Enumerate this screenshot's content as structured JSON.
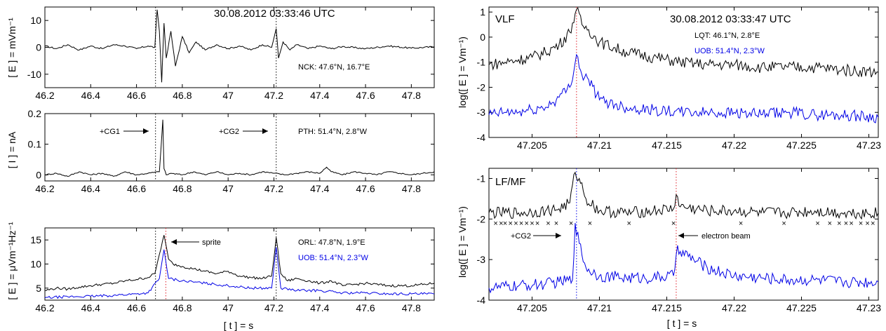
{
  "colors": {
    "black": "#000000",
    "blue": "#0000e6",
    "red": "#e0202a",
    "axis": "#000000"
  },
  "xlabel": "[ t ] = s",
  "chart_data": [
    {
      "id": "e_nck",
      "type": "line",
      "title": "30.08.2012   03:33:46 UTC",
      "ylabel": "[ E ] = mVm⁻¹",
      "xlim": [
        46.2,
        47.9
      ],
      "ylim": [
        -15,
        15
      ],
      "xticks": [
        "46.2",
        "46.4",
        "46.6",
        "46.8",
        "47",
        "47.2",
        "47.4",
        "47.6",
        "47.8"
      ],
      "yticks": [
        "-10",
        "0",
        "10"
      ],
      "annotations": [
        {
          "text": "NCK: 47.6°N, 16.7°E",
          "color": "black"
        }
      ],
      "vlines": [
        {
          "x": 46.683,
          "color": "black"
        },
        {
          "x": 47.21,
          "color": "black"
        }
      ],
      "series": [
        {
          "color": "black",
          "x": [
            46.2,
            46.25,
            46.3,
            46.35,
            46.4,
            46.45,
            46.5,
            46.55,
            46.6,
            46.65,
            46.68,
            46.69,
            46.7,
            46.71,
            46.72,
            46.73,
            46.75,
            46.77,
            46.8,
            46.83,
            46.86,
            46.9,
            46.95,
            47.0,
            47.05,
            47.1,
            47.15,
            47.19,
            47.21,
            47.22,
            47.24,
            47.27,
            47.3,
            47.35,
            47.4,
            47.45,
            47.5,
            47.6,
            47.7,
            47.8,
            47.9
          ],
          "y": [
            0.5,
            -0.5,
            1,
            -1,
            0.5,
            -0.5,
            1,
            0.5,
            -0.5,
            0.5,
            0,
            14,
            6,
            -13,
            9,
            -4,
            6,
            -7,
            4,
            -2,
            2,
            -1,
            1,
            -0.5,
            0.5,
            -1,
            1,
            0,
            7,
            -4,
            2,
            -1,
            1,
            -0.5,
            0.5,
            -0.5,
            0.3,
            -0.5,
            0.5,
            -0.3,
            0.2
          ]
        }
      ]
    },
    {
      "id": "i_pth",
      "type": "line",
      "ylabel": "[ I ] = nA",
      "xlim": [
        46.2,
        47.9
      ],
      "ylim": [
        -0.02,
        0.2
      ],
      "xticks": [
        "46.2",
        "46.4",
        "46.6",
        "46.8",
        "47",
        "47.2",
        "47.4",
        "47.6",
        "47.8"
      ],
      "yticks": [
        "0",
        "0.1",
        "0.2"
      ],
      "annotations": [
        {
          "text": "+CG1",
          "x": 46.683
        },
        {
          "text": "+CG2",
          "x": 47.21
        },
        {
          "text": "PTH: 51.4°N, 2.8°W",
          "color": "black"
        }
      ],
      "vlines": [
        {
          "x": 46.683,
          "color": "black"
        },
        {
          "x": 47.21,
          "color": "black"
        }
      ],
      "series": [
        {
          "color": "black",
          "x": [
            46.2,
            46.25,
            46.3,
            46.35,
            46.4,
            46.45,
            46.5,
            46.55,
            46.6,
            46.65,
            46.7,
            46.715,
            46.72,
            46.73,
            46.75,
            46.8,
            46.85,
            46.9,
            46.95,
            47.0,
            47.05,
            47.1,
            47.15,
            47.2,
            47.25,
            47.3,
            47.35,
            47.4,
            47.43,
            47.45,
            47.5,
            47.55,
            47.6,
            47.65,
            47.7,
            47.75,
            47.8,
            47.85,
            47.9
          ],
          "y": [
            0,
            0.005,
            -0.005,
            0.01,
            0,
            0.005,
            -0.005,
            0.01,
            0,
            0.005,
            0.01,
            0.18,
            0.02,
            0,
            0.005,
            0,
            0.01,
            0,
            0.01,
            0,
            0.005,
            0,
            0.01,
            0.005,
            0,
            0.005,
            0.01,
            0.005,
            0.025,
            0.01,
            0,
            0.01,
            0.005,
            0,
            0.01,
            0.005,
            0,
            0.005,
            0.01
          ]
        }
      ]
    },
    {
      "id": "e_orl",
      "type": "line",
      "ylabel": "[ E ] = μVm⁻¹Hz⁻¹",
      "xlim": [
        46.2,
        47.9
      ],
      "ylim": [
        2.5,
        17.5
      ],
      "xticks": [
        "46.2",
        "46.4",
        "46.6",
        "46.8",
        "47",
        "47.2",
        "47.4",
        "47.6",
        "47.8"
      ],
      "yticks": [
        "5",
        "10",
        "15"
      ],
      "annotations": [
        {
          "text": "sprite"
        },
        {
          "text": "ORL: 47.8°N, 1.9°E",
          "color": "black"
        },
        {
          "text": "UOB: 51.4°N, 2.3°W",
          "color": "blue"
        }
      ],
      "vlines": [
        {
          "x": 46.683,
          "color": "black"
        },
        {
          "x": 47.21,
          "color": "black"
        },
        {
          "x": 46.728,
          "color": "red"
        }
      ],
      "series": [
        {
          "color": "black",
          "x": [
            46.2,
            46.25,
            46.3,
            46.35,
            46.4,
            46.45,
            46.5,
            46.55,
            46.6,
            46.65,
            46.68,
            46.7,
            46.72,
            46.74,
            46.76,
            46.8,
            46.85,
            46.9,
            46.95,
            47.0,
            47.05,
            47.1,
            47.15,
            47.19,
            47.21,
            47.23,
            47.26,
            47.3,
            47.35,
            47.4,
            47.45,
            47.5,
            47.6,
            47.7,
            47.8,
            47.9
          ],
          "y": [
            4.5,
            5,
            4.8,
            5.2,
            5.5,
            5.8,
            6,
            6.5,
            6.8,
            7.2,
            8,
            12,
            16,
            11,
            10,
            9.5,
            9,
            8.5,
            8,
            8.5,
            7.5,
            7.2,
            7,
            7.5,
            15.5,
            8,
            6.5,
            7,
            6.5,
            6,
            6.5,
            5.5,
            6,
            5.5,
            5.5,
            6
          ]
        },
        {
          "color": "blue",
          "x": [
            46.2,
            46.3,
            46.4,
            46.5,
            46.6,
            46.65,
            46.7,
            46.72,
            46.74,
            46.8,
            46.9,
            47.0,
            47.1,
            47.19,
            47.21,
            47.23,
            47.3,
            47.4,
            47.5,
            47.6,
            47.7,
            47.8,
            47.9
          ],
          "y": [
            3,
            3.2,
            3.3,
            3.5,
            3.8,
            4,
            7,
            13,
            7,
            6.5,
            6,
            5.5,
            5,
            5,
            13.5,
            5,
            4.5,
            4.5,
            4,
            4,
            3.8,
            3.8,
            3.8
          ]
        }
      ]
    },
    {
      "id": "vlf",
      "type": "line",
      "panel_label": "VLF",
      "title": "30.08.2012   03:33:47 UTC",
      "ylabel": "log([ E ] = Vm⁻¹)",
      "xlim": [
        47.2018,
        47.2307
      ],
      "ylim": [
        -4,
        1.2
      ],
      "xticks": [
        "47.205",
        "47.21",
        "47.215",
        "47.22",
        "47.225",
        "47.23"
      ],
      "yticks": [
        "-4",
        "-3",
        "-2",
        "-1",
        "0",
        "1"
      ],
      "annotations": [
        {
          "text": "LQT: 46.1°N, 2.8°E",
          "color": "black"
        },
        {
          "text": "UOB: 51.4°N, 2.3°W",
          "color": "blue"
        }
      ],
      "vlines": [
        {
          "x": 47.2083,
          "color": "red"
        }
      ],
      "series": [
        {
          "color": "black",
          "x": [
            47.2018,
            47.203,
            47.204,
            47.205,
            47.206,
            47.207,
            47.2078,
            47.2083,
            47.2087,
            47.2092,
            47.21,
            47.212,
            47.214,
            47.216,
            47.218,
            47.22,
            47.222,
            47.224,
            47.226,
            47.228,
            47.2307
          ],
          "y": [
            -1.1,
            -1.0,
            -0.9,
            -0.8,
            -0.6,
            -0.3,
            0.2,
            1.1,
            0.5,
            0.3,
            -0.2,
            -0.6,
            -0.8,
            -1.0,
            -1.1,
            -1.1,
            -1.2,
            -1.2,
            -1.2,
            -1.3,
            -1.4
          ]
        },
        {
          "color": "blue",
          "x": [
            47.2018,
            47.203,
            47.204,
            47.205,
            47.206,
            47.207,
            47.2078,
            47.2083,
            47.2087,
            47.2092,
            47.21,
            47.212,
            47.214,
            47.216,
            47.218,
            47.22,
            47.222,
            47.224,
            47.226,
            47.228,
            47.2307
          ],
          "y": [
            -3.1,
            -3.0,
            -3.0,
            -2.9,
            -2.8,
            -2.4,
            -2.0,
            -0.7,
            -1.5,
            -1.7,
            -2.5,
            -2.8,
            -2.9,
            -3.0,
            -3.0,
            -3.0,
            -3.1,
            -3.0,
            -3.1,
            -3.1,
            -3.2
          ]
        }
      ]
    },
    {
      "id": "lfmf",
      "type": "line",
      "panel_label": "LF/MF",
      "ylabel": "log([ E ] = Vm⁻¹)",
      "xlim": [
        47.2018,
        47.2307
      ],
      "ylim": [
        -4,
        -0.75
      ],
      "xticks": [
        "47.205",
        "47.21",
        "47.215",
        "47.22",
        "47.225",
        "47.23"
      ],
      "yticks": [
        "-4",
        "-3",
        "-2",
        "-1"
      ],
      "annotations": [
        {
          "text": "+CG2",
          "x": 47.2083
        },
        {
          "text": "electron beam",
          "x": 47.2157
        }
      ],
      "vlines": [
        {
          "x": 47.2083,
          "color": "blue"
        },
        {
          "x": 47.2157,
          "color": "red"
        }
      ],
      "markers_y": -2.1,
      "markers_x": [
        47.2023,
        47.2027,
        47.203,
        47.2034,
        47.2038,
        47.2042,
        47.2046,
        47.205,
        47.2054,
        47.2062,
        47.2068,
        47.2079,
        47.2093,
        47.2122,
        47.2155,
        47.2205,
        47.2237,
        47.2262,
        47.2271,
        47.2278,
        47.2283,
        47.2287,
        47.2294,
        47.2299,
        47.2303
      ],
      "series": [
        {
          "color": "black",
          "x": [
            47.2018,
            47.204,
            47.206,
            47.207,
            47.2078,
            47.2082,
            47.2085,
            47.209,
            47.21,
            47.212,
            47.214,
            47.2155,
            47.2157,
            47.216,
            47.218,
            47.22,
            47.222,
            47.224,
            47.226,
            47.228,
            47.2307
          ],
          "y": [
            -1.85,
            -1.85,
            -1.8,
            -1.75,
            -1.6,
            -0.85,
            -1.0,
            -1.5,
            -1.8,
            -1.85,
            -1.8,
            -1.75,
            -1.4,
            -1.7,
            -1.8,
            -1.8,
            -1.85,
            -1.85,
            -1.8,
            -1.85,
            -1.85
          ]
        },
        {
          "color": "blue",
          "x": [
            47.2018,
            47.204,
            47.206,
            47.207,
            47.208,
            47.2082,
            47.2085,
            47.209,
            47.21,
            47.212,
            47.214,
            47.2155,
            47.2158,
            47.216,
            47.217,
            47.218,
            47.22,
            47.222,
            47.224,
            47.226,
            47.228,
            47.2307
          ],
          "y": [
            -3.7,
            -3.65,
            -3.6,
            -3.55,
            -3.5,
            -2.1,
            -2.6,
            -3.2,
            -3.4,
            -3.45,
            -3.45,
            -3.4,
            -2.65,
            -2.8,
            -3.0,
            -3.2,
            -3.4,
            -3.45,
            -3.5,
            -3.5,
            -3.55,
            -3.55
          ]
        }
      ]
    }
  ]
}
